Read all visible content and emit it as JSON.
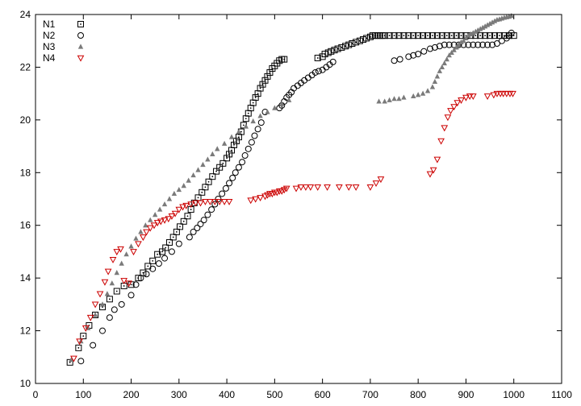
{
  "chart_data": {
    "type": "scatter",
    "title": "",
    "xlabel": "",
    "ylabel": "",
    "xlim": [
      0,
      1100
    ],
    "ylim": [
      10,
      24
    ],
    "xticks": [
      "0",
      "100",
      "200",
      "300",
      "400",
      "500",
      "600",
      "700",
      "800",
      "900",
      "1000",
      "1100"
    ],
    "yticks": [
      "10",
      "12",
      "14",
      "16",
      "18",
      "20",
      "22",
      "24"
    ],
    "grid": false,
    "legend_position": "top-left",
    "series": [
      {
        "name": "N1",
        "marker": "square-dot",
        "color": "#000000",
        "x": [
          72,
          90,
          100,
          112,
          125,
          140,
          155,
          170,
          185,
          200,
          215,
          225,
          235,
          245,
          255,
          265,
          272,
          280,
          288,
          295,
          302,
          310,
          318,
          325,
          332,
          340,
          348,
          355,
          362,
          370,
          378,
          385,
          392,
          400,
          405,
          410,
          415,
          420,
          425,
          430,
          435,
          440,
          445,
          450,
          455,
          460,
          465,
          470,
          475,
          480,
          485,
          490,
          495,
          500,
          505,
          510,
          515,
          520,
          590,
          600,
          605,
          612,
          618,
          625,
          632,
          640,
          648,
          655,
          662,
          670,
          678,
          685,
          692,
          700,
          705,
          710,
          715,
          720,
          725,
          730,
          740,
          750,
          760,
          770,
          780,
          790,
          800,
          810,
          820,
          830,
          840,
          850,
          860,
          870,
          880,
          890,
          900,
          910,
          920,
          930,
          940,
          950,
          960,
          970,
          980,
          990,
          1000
        ],
        "y": [
          10.8,
          11.35,
          11.8,
          12.2,
          12.6,
          12.9,
          13.2,
          13.5,
          13.7,
          13.75,
          14.0,
          14.2,
          14.45,
          14.65,
          14.9,
          15.0,
          15.15,
          15.35,
          15.55,
          15.75,
          15.95,
          16.15,
          16.35,
          16.6,
          16.85,
          17.05,
          17.25,
          17.45,
          17.65,
          17.85,
          18.05,
          18.2,
          18.35,
          18.55,
          18.7,
          18.85,
          19.05,
          19.2,
          19.35,
          19.55,
          19.8,
          20.05,
          20.25,
          20.45,
          20.65,
          20.85,
          21.0,
          21.2,
          21.35,
          21.5,
          21.65,
          21.8,
          21.95,
          22.05,
          22.15,
          22.25,
          22.3,
          22.3,
          22.35,
          22.4,
          22.5,
          22.55,
          22.6,
          22.65,
          22.7,
          22.75,
          22.8,
          22.85,
          22.9,
          22.95,
          23.0,
          23.05,
          23.1,
          23.15,
          23.2,
          23.2,
          23.2,
          23.2,
          23.2,
          23.2,
          23.2,
          23.2,
          23.2,
          23.2,
          23.2,
          23.2,
          23.2,
          23.2,
          23.2,
          23.2,
          23.2,
          23.2,
          23.2,
          23.2,
          23.2,
          23.2,
          23.2,
          23.2,
          23.2,
          23.2,
          23.2,
          23.2,
          23.2,
          23.2,
          23.2,
          23.2,
          23.2
        ]
      },
      {
        "name": "N2",
        "marker": "circle",
        "color": "#000000",
        "x": [
          95,
          120,
          140,
          155,
          165,
          180,
          200,
          210,
          220,
          232,
          245,
          258,
          270,
          285,
          300,
          322,
          330,
          338,
          345,
          352,
          360,
          368,
          375,
          382,
          390,
          398,
          405,
          412,
          418,
          425,
          432,
          438,
          445,
          452,
          458,
          465,
          472,
          480,
          510,
          515,
          520,
          525,
          530,
          535,
          540,
          548,
          555,
          562,
          570,
          578,
          585,
          592,
          600,
          608,
          615,
          622,
          750,
          762,
          780,
          790,
          800,
          812,
          825,
          835,
          845,
          855,
          865,
          875,
          885,
          895,
          905,
          915,
          925,
          935,
          945,
          955,
          965,
          975,
          985,
          990,
          995
        ],
        "y": [
          10.85,
          11.45,
          12.0,
          12.5,
          12.8,
          13.0,
          13.35,
          13.75,
          14.0,
          14.15,
          14.35,
          14.55,
          14.75,
          15.0,
          15.3,
          15.55,
          15.75,
          15.9,
          16.05,
          16.2,
          16.4,
          16.6,
          16.8,
          17.0,
          17.2,
          17.4,
          17.6,
          17.8,
          18.0,
          18.2,
          18.4,
          18.65,
          18.9,
          19.15,
          19.4,
          19.65,
          19.9,
          20.3,
          20.45,
          20.55,
          20.7,
          20.85,
          20.95,
          21.05,
          21.2,
          21.3,
          21.4,
          21.5,
          21.6,
          21.7,
          21.8,
          21.85,
          21.9,
          22.0,
          22.1,
          22.2,
          22.25,
          22.3,
          22.4,
          22.45,
          22.5,
          22.6,
          22.7,
          22.75,
          22.8,
          22.85,
          22.85,
          22.85,
          22.85,
          22.85,
          22.85,
          22.85,
          22.85,
          22.85,
          22.85,
          22.85,
          22.9,
          23.0,
          23.1,
          23.2,
          23.3
        ]
      },
      {
        "name": "N3",
        "marker": "triangle-filled",
        "color": "#7a7a7a",
        "x": [
          75,
          95,
          110,
          125,
          140,
          150,
          160,
          170,
          180,
          190,
          200,
          210,
          220,
          230,
          240,
          250,
          260,
          270,
          280,
          290,
          300,
          310,
          320,
          330,
          340,
          350,
          360,
          370,
          380,
          395,
          410,
          425,
          440,
          455,
          470,
          485,
          500,
          515,
          530,
          718,
          730,
          740,
          750,
          760,
          770,
          790,
          800,
          810,
          820,
          830,
          835,
          840,
          845,
          850,
          855,
          860,
          865,
          870,
          875,
          880,
          885,
          890,
          895,
          900,
          905,
          910,
          915,
          920,
          925,
          930,
          935,
          940,
          945,
          950,
          955,
          960,
          965,
          970,
          975,
          980,
          985,
          990,
          995
        ],
        "y": [
          10.9,
          11.6,
          12.1,
          12.6,
          13.0,
          13.4,
          13.8,
          14.2,
          14.55,
          14.9,
          15.2,
          15.5,
          15.75,
          16.0,
          16.2,
          16.4,
          16.6,
          16.8,
          17.0,
          17.2,
          17.35,
          17.5,
          17.7,
          17.9,
          18.1,
          18.3,
          18.5,
          18.7,
          18.9,
          19.1,
          19.35,
          19.55,
          19.75,
          19.95,
          20.15,
          20.3,
          20.45,
          20.6,
          20.75,
          20.7,
          20.7,
          20.75,
          20.8,
          20.8,
          20.85,
          20.9,
          20.95,
          21.0,
          21.1,
          21.25,
          21.45,
          21.65,
          21.85,
          22.0,
          22.15,
          22.3,
          22.45,
          22.55,
          22.65,
          22.75,
          22.85,
          22.95,
          23.0,
          23.1,
          23.2,
          23.25,
          23.3,
          23.35,
          23.4,
          23.45,
          23.5,
          23.55,
          23.6,
          23.65,
          23.7,
          23.75,
          23.8,
          23.82,
          23.85,
          23.88,
          23.9,
          23.92,
          23.95
        ]
      },
      {
        "name": "N4",
        "marker": "triangle-down",
        "color": "#cc0000",
        "x": [
          80,
          92,
          105,
          115,
          125,
          135,
          145,
          152,
          162,
          170,
          178,
          185,
          195,
          205,
          215,
          225,
          232,
          240,
          248,
          255,
          262,
          270,
          278,
          285,
          292,
          300,
          308,
          315,
          325,
          335,
          345,
          355,
          365,
          375,
          385,
          395,
          405,
          450,
          460,
          470,
          480,
          485,
          490,
          495,
          500,
          505,
          510,
          515,
          520,
          525,
          545,
          555,
          565,
          575,
          590,
          610,
          635,
          655,
          670,
          700,
          712,
          722,
          825,
          832,
          840,
          848,
          855,
          862,
          868,
          875,
          882,
          890,
          900,
          908,
          915,
          945,
          958,
          965,
          972,
          978,
          985,
          992,
          998
        ],
        "y": [
          10.95,
          11.6,
          12.1,
          12.5,
          13.0,
          13.4,
          13.85,
          14.25,
          14.7,
          15.0,
          15.1,
          13.9,
          13.8,
          15.0,
          15.3,
          15.55,
          15.75,
          15.9,
          16.0,
          16.1,
          16.15,
          16.2,
          16.25,
          16.35,
          16.45,
          16.6,
          16.7,
          16.75,
          16.8,
          16.85,
          16.85,
          16.9,
          16.9,
          16.9,
          16.9,
          16.9,
          16.9,
          16.95,
          17.0,
          17.05,
          17.1,
          17.15,
          17.2,
          17.2,
          17.25,
          17.25,
          17.3,
          17.3,
          17.35,
          17.4,
          17.4,
          17.45,
          17.45,
          17.45,
          17.45,
          17.45,
          17.45,
          17.45,
          17.45,
          17.45,
          17.6,
          17.75,
          17.95,
          18.1,
          18.5,
          19.2,
          19.7,
          20.1,
          20.35,
          20.5,
          20.65,
          20.75,
          20.85,
          20.9,
          20.9,
          20.9,
          20.95,
          21.0,
          21.0,
          21.0,
          21.0,
          21.0,
          21.0
        ]
      }
    ]
  }
}
